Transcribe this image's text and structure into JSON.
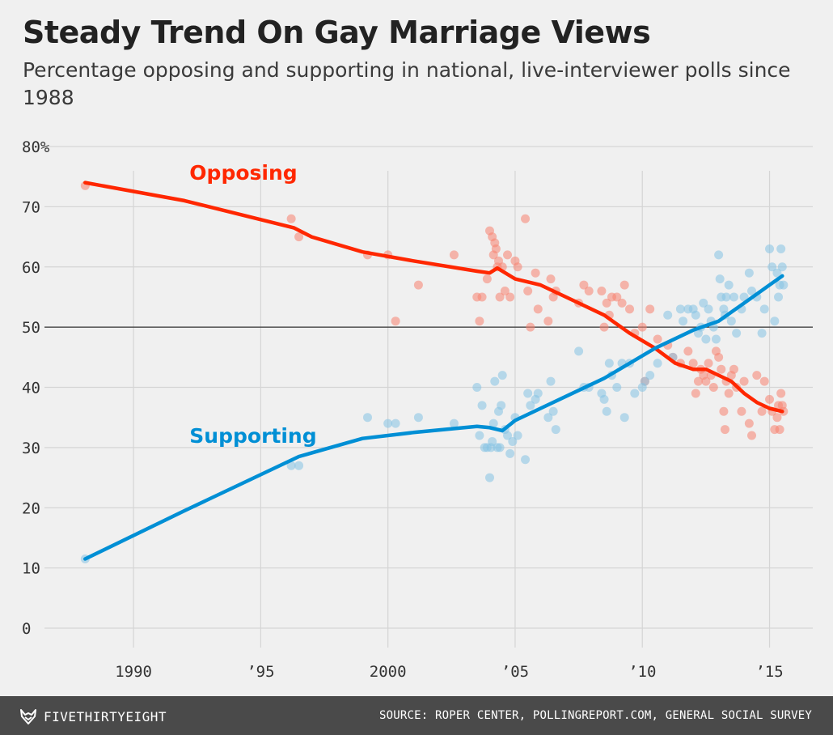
{
  "title": "Steady Trend On Gay Marriage Views",
  "subtitle": "Percentage opposing and supporting in national, live-interviewer polls since 1988",
  "footer": {
    "brand": "FIVETHIRTYEIGHT",
    "brand_icon": "fivethirtyeight-fox-icon",
    "source": "SOURCE: ROPER CENTER, POLLINGREPORT.COM, GENERAL SOCIAL SURVEY"
  },
  "chart_data": {
    "type": "scatter",
    "xlim": [
      1986.5,
      2016.7
    ],
    "ylim": [
      0,
      80
    ],
    "x_ticks": [
      {
        "value": 1990,
        "label": "1990"
      },
      {
        "value": 1995,
        "label": "’95"
      },
      {
        "value": 2000,
        "label": "2000"
      },
      {
        "value": 2005,
        "label": "’05"
      },
      {
        "value": 2010,
        "label": "’10"
      },
      {
        "value": 2015,
        "label": "’15"
      }
    ],
    "y_ticks": [
      {
        "value": 0,
        "label": "0"
      },
      {
        "value": 10,
        "label": "10"
      },
      {
        "value": 20,
        "label": "20"
      },
      {
        "value": 30,
        "label": "30"
      },
      {
        "value": 40,
        "label": "40"
      },
      {
        "value": 50,
        "label": "50"
      },
      {
        "value": 60,
        "label": "60"
      },
      {
        "value": 70,
        "label": "70"
      },
      {
        "value": 80,
        "label": "80%"
      }
    ],
    "reference_line": 50,
    "grid": true,
    "series": [
      {
        "name": "Opposing",
        "color": "#ff2700",
        "dot_color": "#f8826f",
        "label_anchor": [
          1992.2,
          74.5
        ],
        "trend": [
          [
            1988.1,
            74
          ],
          [
            1992,
            71
          ],
          [
            1996.3,
            66.5
          ],
          [
            1997,
            65
          ],
          [
            1999,
            62.5
          ],
          [
            2001,
            61
          ],
          [
            2003.5,
            59.3
          ],
          [
            2004,
            59
          ],
          [
            2004.3,
            59.8
          ],
          [
            2005,
            58
          ],
          [
            2006,
            57
          ],
          [
            2007.5,
            54
          ],
          [
            2008.5,
            52
          ],
          [
            2009.5,
            49
          ],
          [
            2010.5,
            46.5
          ],
          [
            2011.3,
            44
          ],
          [
            2012,
            43
          ],
          [
            2012.5,
            43
          ],
          [
            2013,
            42
          ],
          [
            2013.5,
            41
          ],
          [
            2014,
            39
          ],
          [
            2014.5,
            37.5
          ],
          [
            2015,
            36.5
          ],
          [
            2015.5,
            36
          ]
        ],
        "points": [
          [
            1988.1,
            73.5
          ],
          [
            1996.2,
            68
          ],
          [
            1996.5,
            65
          ],
          [
            1999.2,
            62
          ],
          [
            2000,
            62
          ],
          [
            2000.3,
            51
          ],
          [
            2001.2,
            57
          ],
          [
            2002.6,
            62
          ],
          [
            2003.5,
            55
          ],
          [
            2003.6,
            51
          ],
          [
            2003.7,
            55
          ],
          [
            2003.9,
            58
          ],
          [
            2004.0,
            66
          ],
          [
            2004.1,
            65
          ],
          [
            2004.15,
            62
          ],
          [
            2004.2,
            64
          ],
          [
            2004.25,
            63
          ],
          [
            2004.3,
            60
          ],
          [
            2004.35,
            61
          ],
          [
            2004.4,
            55
          ],
          [
            2004.5,
            60
          ],
          [
            2004.6,
            56
          ],
          [
            2004.7,
            62
          ],
          [
            2004.8,
            55
          ],
          [
            2005.0,
            61
          ],
          [
            2005.1,
            60
          ],
          [
            2005.4,
            68
          ],
          [
            2005.5,
            56
          ],
          [
            2005.6,
            50
          ],
          [
            2005.8,
            59
          ],
          [
            2005.9,
            53
          ],
          [
            2006.3,
            51
          ],
          [
            2006.4,
            58
          ],
          [
            2006.5,
            55
          ],
          [
            2006.6,
            56
          ],
          [
            2007.5,
            54
          ],
          [
            2007.7,
            57
          ],
          [
            2007.9,
            56
          ],
          [
            2008.4,
            56
          ],
          [
            2008.5,
            50
          ],
          [
            2008.6,
            54
          ],
          [
            2008.7,
            52
          ],
          [
            2008.8,
            55
          ],
          [
            2009,
            55
          ],
          [
            2009.2,
            54
          ],
          [
            2009.3,
            57
          ],
          [
            2009.5,
            53
          ],
          [
            2009.7,
            49
          ],
          [
            2010,
            50
          ],
          [
            2010.1,
            41
          ],
          [
            2010.3,
            53
          ],
          [
            2010.6,
            48
          ],
          [
            2011,
            47
          ],
          [
            2011.2,
            45
          ],
          [
            2011.5,
            44
          ],
          [
            2011.8,
            46
          ],
          [
            2012,
            44
          ],
          [
            2012.1,
            39
          ],
          [
            2012.2,
            41
          ],
          [
            2012.3,
            43
          ],
          [
            2012.4,
            42
          ],
          [
            2012.5,
            41
          ],
          [
            2012.6,
            44
          ],
          [
            2012.7,
            42
          ],
          [
            2012.8,
            40
          ],
          [
            2012.9,
            46
          ],
          [
            2013,
            45
          ],
          [
            2013.1,
            43
          ],
          [
            2013.2,
            36
          ],
          [
            2013.25,
            33
          ],
          [
            2013.3,
            41
          ],
          [
            2013.4,
            39
          ],
          [
            2013.5,
            42
          ],
          [
            2013.6,
            43
          ],
          [
            2013.7,
            40
          ],
          [
            2013.9,
            36
          ],
          [
            2014,
            41
          ],
          [
            2014.2,
            34
          ],
          [
            2014.3,
            32
          ],
          [
            2014.5,
            42
          ],
          [
            2014.7,
            36
          ],
          [
            2014.8,
            41
          ],
          [
            2015,
            38
          ],
          [
            2015.1,
            36
          ],
          [
            2015.2,
            33
          ],
          [
            2015.3,
            35
          ],
          [
            2015.35,
            37
          ],
          [
            2015.4,
            33
          ],
          [
            2015.45,
            39
          ],
          [
            2015.5,
            37
          ],
          [
            2015.55,
            36
          ]
        ]
      },
      {
        "name": "Supporting",
        "color": "#008fd5",
        "dot_color": "#85c3e3",
        "label_anchor": [
          1992.2,
          30.8
        ],
        "trend": [
          [
            1988.1,
            11.5
          ],
          [
            1992,
            19.5
          ],
          [
            1996.5,
            28.5
          ],
          [
            1999,
            31.5
          ],
          [
            2001,
            32.5
          ],
          [
            2003.5,
            33.5
          ],
          [
            2004,
            33.3
          ],
          [
            2004.5,
            32.8
          ],
          [
            2005,
            34.5
          ],
          [
            2006,
            36.5
          ],
          [
            2007.5,
            39.5
          ],
          [
            2008.5,
            41.5
          ],
          [
            2009.5,
            44
          ],
          [
            2010.5,
            46.5
          ],
          [
            2011.5,
            48.5
          ],
          [
            2012,
            49.5
          ],
          [
            2013,
            51
          ],
          [
            2014,
            54
          ],
          [
            2015,
            57
          ],
          [
            2015.5,
            58.5
          ]
        ],
        "points": [
          [
            1988.1,
            11.5
          ],
          [
            1996.2,
            27
          ],
          [
            1996.5,
            27
          ],
          [
            1999.2,
            35
          ],
          [
            2000,
            34
          ],
          [
            2000.3,
            34
          ],
          [
            2001.2,
            35
          ],
          [
            2002.6,
            34
          ],
          [
            2003.5,
            40
          ],
          [
            2003.6,
            32
          ],
          [
            2003.7,
            37
          ],
          [
            2003.8,
            30
          ],
          [
            2003.9,
            30
          ],
          [
            2004.0,
            25
          ],
          [
            2004.05,
            30
          ],
          [
            2004.1,
            31
          ],
          [
            2004.15,
            34
          ],
          [
            2004.2,
            41
          ],
          [
            2004.3,
            30
          ],
          [
            2004.35,
            36
          ],
          [
            2004.4,
            30
          ],
          [
            2004.45,
            37
          ],
          [
            2004.5,
            42
          ],
          [
            2004.6,
            33
          ],
          [
            2004.7,
            32
          ],
          [
            2004.8,
            29
          ],
          [
            2004.9,
            31
          ],
          [
            2005.0,
            35
          ],
          [
            2005.1,
            32
          ],
          [
            2005.4,
            28
          ],
          [
            2005.5,
            39
          ],
          [
            2005.6,
            37
          ],
          [
            2005.8,
            38
          ],
          [
            2005.9,
            39
          ],
          [
            2006.3,
            35
          ],
          [
            2006.4,
            41
          ],
          [
            2006.5,
            36
          ],
          [
            2006.6,
            33
          ],
          [
            2007.5,
            46
          ],
          [
            2007.7,
            40
          ],
          [
            2007.9,
            40
          ],
          [
            2008.4,
            39
          ],
          [
            2008.5,
            38
          ],
          [
            2008.6,
            36
          ],
          [
            2008.7,
            44
          ],
          [
            2008.8,
            42
          ],
          [
            2009,
            40
          ],
          [
            2009.2,
            44
          ],
          [
            2009.3,
            35
          ],
          [
            2009.5,
            44
          ],
          [
            2009.7,
            39
          ],
          [
            2010,
            40
          ],
          [
            2010.1,
            41
          ],
          [
            2010.3,
            42
          ],
          [
            2010.6,
            44
          ],
          [
            2011,
            52
          ],
          [
            2011.2,
            45
          ],
          [
            2011.5,
            53
          ],
          [
            2011.6,
            51
          ],
          [
            2011.8,
            53
          ],
          [
            2012,
            53
          ],
          [
            2012.1,
            52
          ],
          [
            2012.2,
            49
          ],
          [
            2012.3,
            50
          ],
          [
            2012.4,
            54
          ],
          [
            2012.5,
            48
          ],
          [
            2012.6,
            53
          ],
          [
            2012.7,
            51
          ],
          [
            2012.8,
            50
          ],
          [
            2012.9,
            48
          ],
          [
            2013,
            62
          ],
          [
            2013.05,
            58
          ],
          [
            2013.1,
            55
          ],
          [
            2013.2,
            53
          ],
          [
            2013.25,
            52
          ],
          [
            2013.3,
            55
          ],
          [
            2013.4,
            57
          ],
          [
            2013.5,
            51
          ],
          [
            2013.6,
            55
          ],
          [
            2013.7,
            49
          ],
          [
            2013.9,
            53
          ],
          [
            2014,
            55
          ],
          [
            2014.2,
            59
          ],
          [
            2014.3,
            56
          ],
          [
            2014.5,
            55
          ],
          [
            2014.7,
            49
          ],
          [
            2014.8,
            53
          ],
          [
            2015,
            63
          ],
          [
            2015.1,
            60
          ],
          [
            2015.2,
            51
          ],
          [
            2015.3,
            59
          ],
          [
            2015.35,
            55
          ],
          [
            2015.4,
            57
          ],
          [
            2015.45,
            63
          ],
          [
            2015.5,
            60
          ],
          [
            2015.55,
            57
          ]
        ]
      }
    ]
  }
}
